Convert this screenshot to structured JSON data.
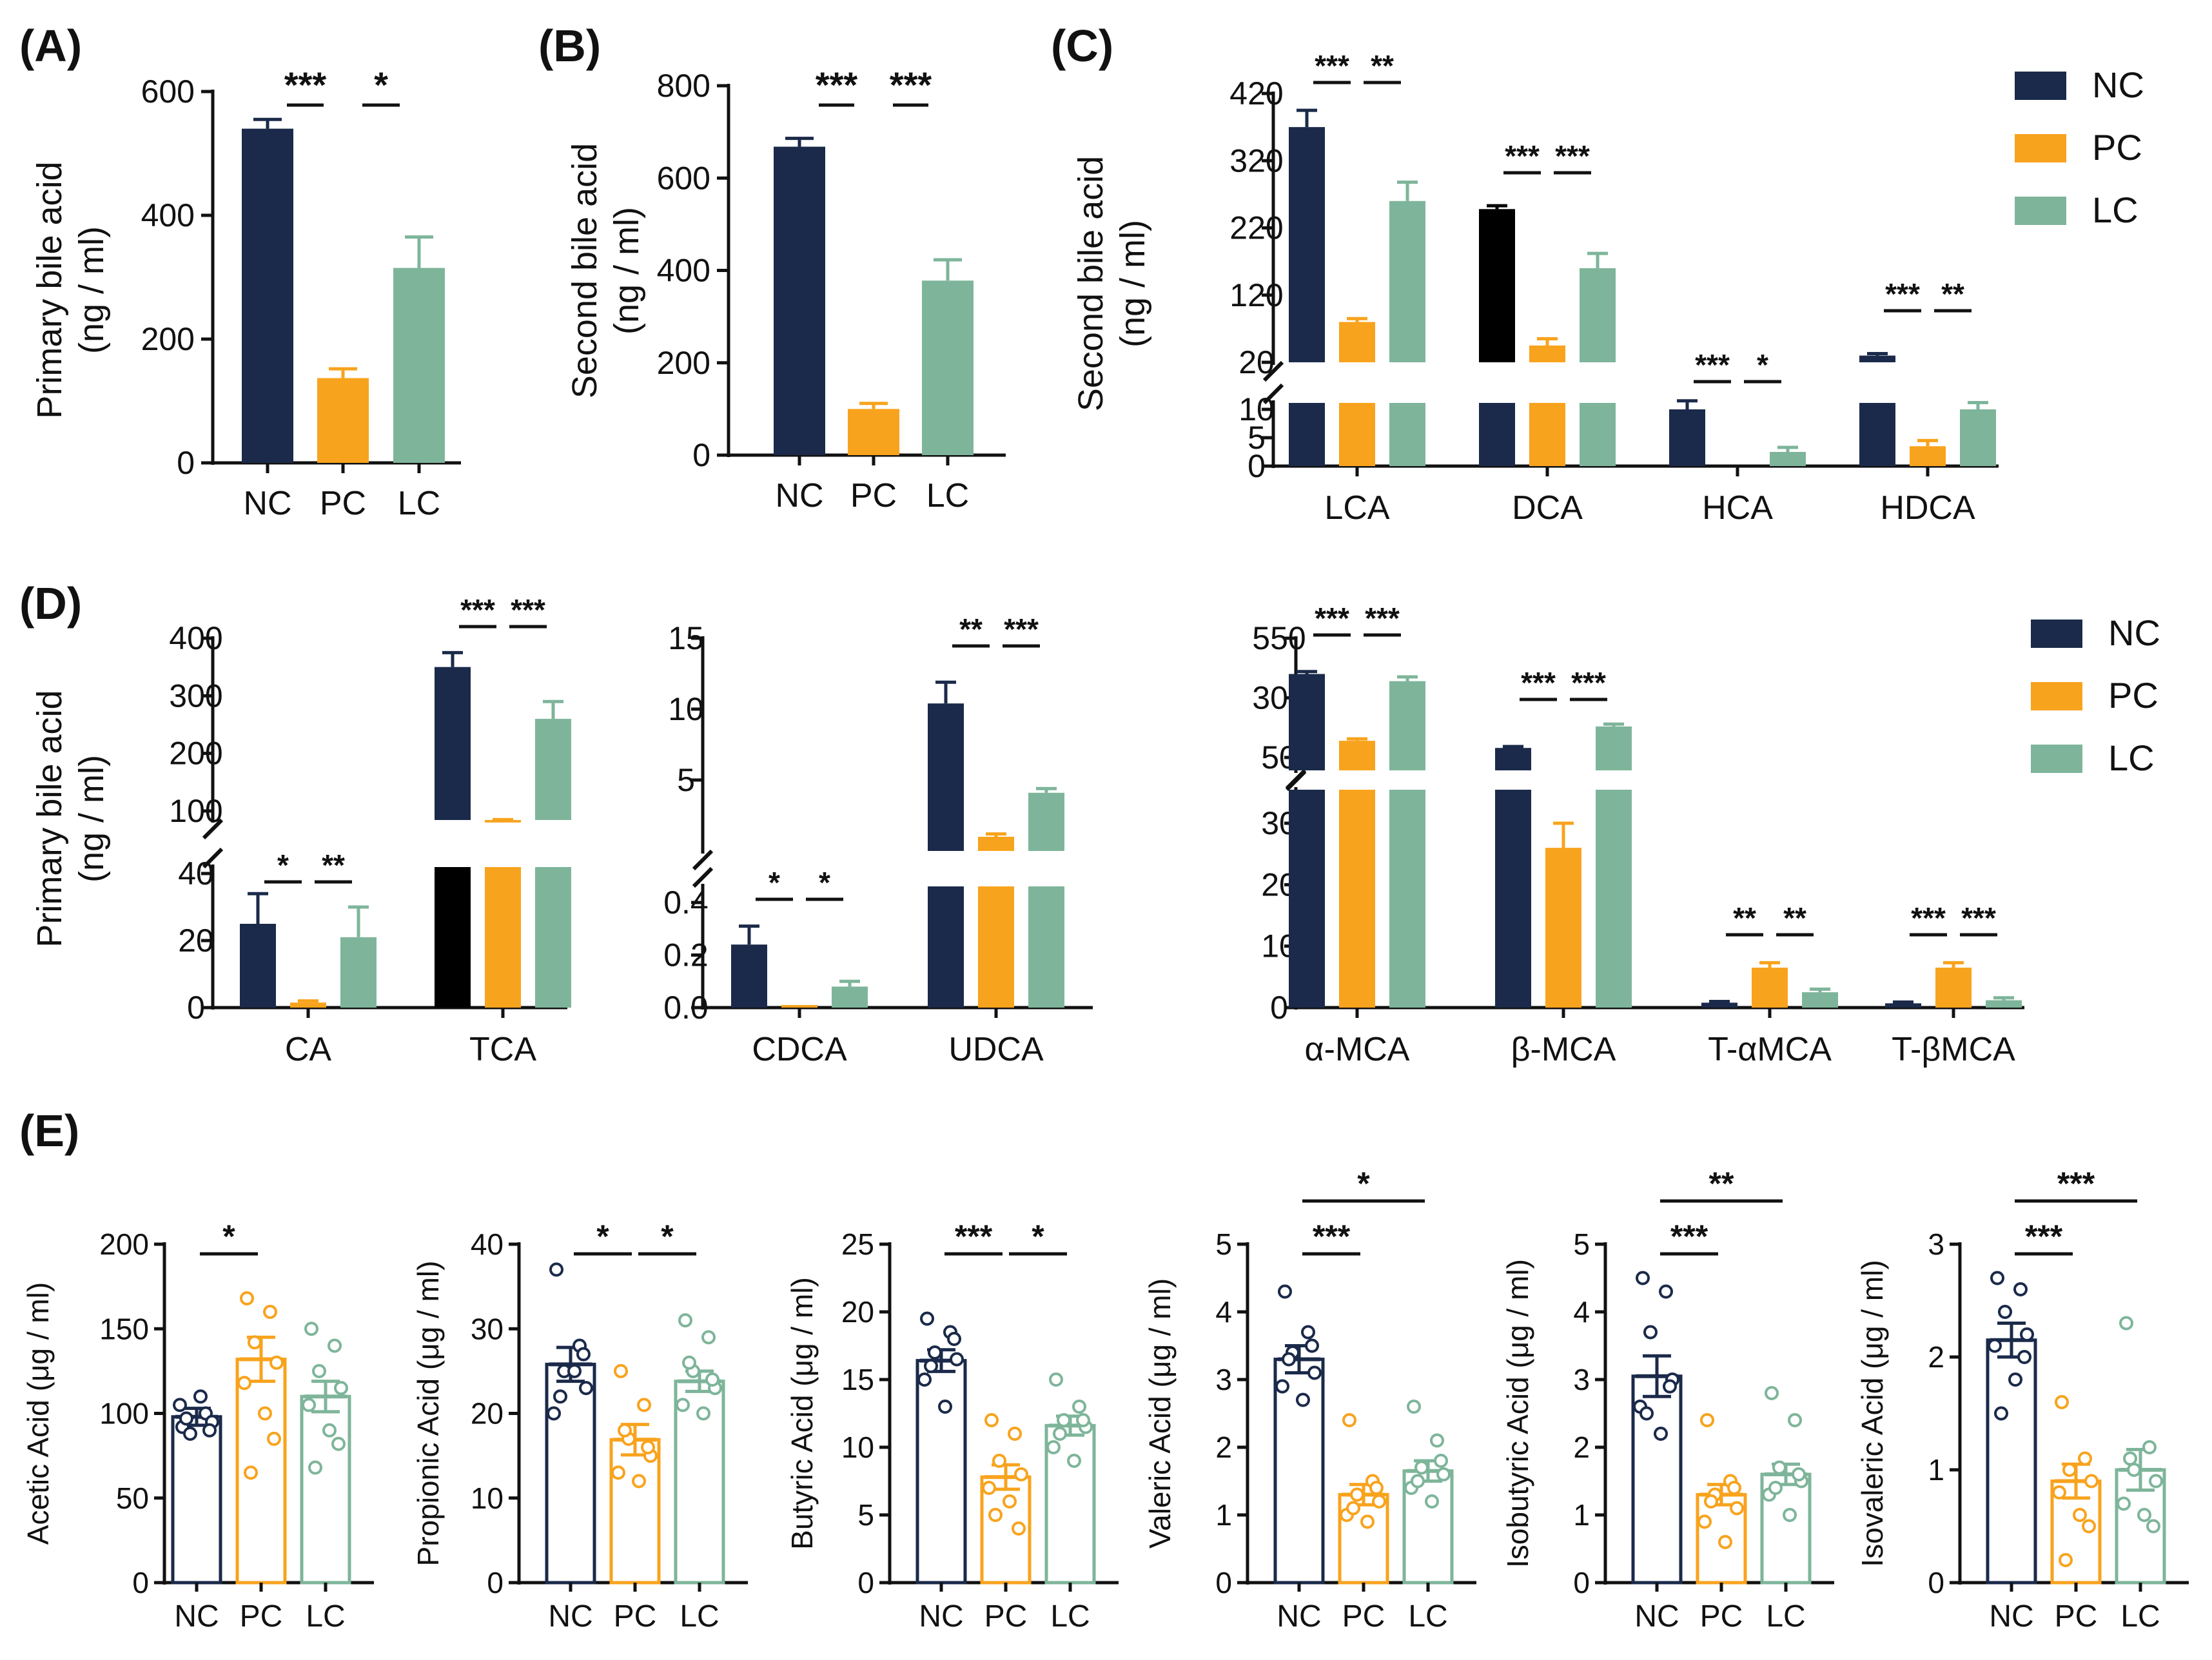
{
  "colors": {
    "NC": "#1b2a4a",
    "PC": "#f8a31d",
    "LC": "#7eb59a",
    "black": "#000000",
    "axis": "#111111"
  },
  "legend_top": [
    "NC",
    "PC",
    "LC"
  ],
  "legend_middle": [
    "NC",
    "PC",
    "LC"
  ],
  "chart_data": [
    {
      "id": "A",
      "panel": "(A)",
      "type": "bar",
      "ylabel": [
        "Primary bile acid",
        "(ng / ml)"
      ],
      "categories": [
        "NC",
        "PC",
        "LC"
      ],
      "values": [
        540,
        137,
        315
      ],
      "errors": [
        15,
        15,
        50
      ],
      "ylim": [
        0,
        600
      ],
      "ticks": [
        "0",
        "200",
        "400",
        "600"
      ],
      "tick_values": [
        0,
        200,
        400,
        600
      ],
      "sig": [
        {
          "pair": [
            0,
            1
          ],
          "label": "***"
        },
        {
          "pair": [
            1,
            2
          ],
          "label": "*"
        }
      ]
    },
    {
      "id": "B",
      "panel": "(B)",
      "type": "bar",
      "ylabel": [
        "Second bile acid",
        "(ng / ml)"
      ],
      "categories": [
        "NC",
        "PC",
        "LC"
      ],
      "values": [
        668,
        100,
        378
      ],
      "errors": [
        18,
        12,
        45
      ],
      "ylim": [
        0,
        800
      ],
      "ticks": [
        "0",
        "200",
        "400",
        "600",
        "800"
      ],
      "tick_values": [
        0,
        200,
        400,
        600,
        800
      ],
      "sig": [
        {
          "pair": [
            0,
            1
          ],
          "label": "***"
        },
        {
          "pair": [
            1,
            2
          ],
          "label": "***"
        }
      ]
    },
    {
      "id": "C",
      "panel": "(C)",
      "type": "bar",
      "ylabel": [
        "Second bile acid",
        "(ng / ml)"
      ],
      "series": [
        "NC",
        "PC",
        "LC"
      ],
      "groups": [
        "LCA",
        "DCA",
        "HCA",
        "HDCA"
      ],
      "values": [
        [
          370,
          80,
          260
        ],
        [
          248,
          45,
          160
        ],
        [
          10,
          0,
          2.5
        ],
        [
          30,
          3.5,
          10
        ]
      ],
      "errors": [
        [
          25,
          5,
          28
        ],
        [
          5,
          10,
          22
        ],
        [
          1.5,
          0,
          0.8
        ],
        [
          3,
          1,
          1.2
        ]
      ],
      "colorOverride": [
        [
          null,
          null,
          null
        ],
        [
          "black",
          null,
          null
        ],
        [
          null,
          null,
          null
        ],
        [
          null,
          null,
          null
        ]
      ],
      "ticks": [
        "420",
        "320",
        "220",
        "120",
        "20",
        "10",
        "5",
        "0"
      ],
      "sig": [
        {
          "g": 0,
          "a": "***",
          "b": "**"
        },
        {
          "g": 1,
          "a": "***",
          "b": "***"
        },
        {
          "g": 2,
          "a": "***",
          "b": "*"
        },
        {
          "g": 3,
          "a": "***",
          "b": "**"
        }
      ]
    },
    {
      "id": "D1",
      "panel": "(D)",
      "type": "bar",
      "ylabel": [
        "Primary bile acid",
        "(ng / ml)"
      ],
      "series": [
        "NC",
        "PC",
        "LC"
      ],
      "groups": [
        "CA",
        "TCA"
      ],
      "values": [
        [
          25,
          1.5,
          21
        ],
        [
          350,
          80,
          260
        ]
      ],
      "errors": [
        [
          9,
          0.5,
          9
        ],
        [
          25,
          5,
          30
        ]
      ],
      "colorOverride": [
        [
          null,
          null,
          null
        ],
        [
          null,
          null,
          null
        ]
      ],
      "ticks": [
        "400",
        "300",
        "200",
        "100",
        "40",
        "20",
        "0"
      ],
      "sig": [
        {
          "g": 0,
          "a": "*",
          "b": "**"
        },
        {
          "g": 1,
          "a": "***",
          "b": "***"
        }
      ]
    },
    {
      "id": "D2",
      "type": "bar",
      "series": [
        "NC",
        "PC",
        "LC"
      ],
      "groups": [
        "CDCA",
        "UDCA"
      ],
      "values": [
        [
          0.24,
          0.01,
          0.08
        ],
        [
          10.4,
          1,
          4.1
        ]
      ],
      "errors": [
        [
          0.07,
          0.004,
          0.02
        ],
        [
          1.5,
          0.2,
          0.3
        ]
      ],
      "ticks": [
        "15",
        "10",
        "5",
        "0.4",
        "0.2",
        "0.0"
      ],
      "sig": [
        {
          "g": 0,
          "a": "*",
          "b": "*"
        },
        {
          "g": 1,
          "a": "**",
          "b": "***"
        }
      ]
    },
    {
      "id": "D3",
      "type": "bar",
      "series": [
        "NC",
        "PC",
        "LC"
      ],
      "groups": [
        "α-MCA",
        "β-MCA",
        "T-αMCA",
        "T-βMCA"
      ],
      "values": [
        [
          400,
          120,
          370
        ],
        [
          90,
          26,
          180
        ],
        [
          0.8,
          6.5,
          2.5
        ],
        [
          0.7,
          6.5,
          1.2
        ]
      ],
      "errors": [
        [
          10,
          8,
          18
        ],
        [
          6,
          4,
          10
        ],
        [
          0.2,
          0.8,
          0.5
        ],
        [
          0.2,
          0.8,
          0.4
        ]
      ],
      "ticks": [
        "550",
        "300",
        "50",
        "30",
        "20",
        "10",
        "0"
      ],
      "sig": [
        {
          "g": 0,
          "a": "***",
          "b": "***"
        },
        {
          "g": 1,
          "a": "***",
          "b": "***"
        },
        {
          "g": 2,
          "a": "**",
          "b": "**"
        },
        {
          "g": 3,
          "a": "***",
          "b": "***"
        }
      ]
    },
    {
      "id": "E1",
      "panel": "(E)",
      "type": "bar",
      "ylabel": "Acetic Acid (μg / ml)",
      "categories": [
        "NC",
        "PC",
        "LC"
      ],
      "values": [
        98,
        132,
        110
      ],
      "errors": [
        5,
        13,
        9
      ],
      "ylim": [
        0,
        200
      ],
      "ticks": [
        "0",
        "50",
        "100",
        "150",
        "200"
      ],
      "tick_values": [
        0,
        50,
        100,
        150,
        200
      ],
      "points": [
        [
          92,
          100,
          88,
          95,
          105,
          110,
          90,
          97
        ],
        [
          168,
          160,
          142,
          130,
          118,
          100,
          85,
          65
        ],
        [
          150,
          140,
          125,
          115,
          105,
          90,
          82,
          68
        ]
      ],
      "sig": [
        {
          "pair": [
            0,
            1
          ],
          "label": "*"
        }
      ]
    },
    {
      "id": "E2",
      "type": "bar",
      "ylabel": "Propionic Acid (μg / ml)",
      "categories": [
        "NC",
        "PC",
        "LC"
      ],
      "values": [
        25.8,
        16.9,
        23.8
      ],
      "errors": [
        2,
        1.8,
        1.2
      ],
      "ylim": [
        0,
        40
      ],
      "ticks": [
        "0",
        "10",
        "20",
        "30",
        "40"
      ],
      "tick_values": [
        0,
        10,
        20,
        30,
        40
      ],
      "points": [
        [
          37,
          28,
          25,
          23,
          20,
          25,
          27,
          22
        ],
        [
          25,
          21,
          17,
          15,
          13,
          12,
          16,
          18
        ],
        [
          31,
          29,
          25,
          23,
          21,
          20,
          24,
          26
        ]
      ],
      "sig": [
        {
          "pair": [
            0,
            1
          ],
          "label": "*"
        },
        {
          "pair": [
            1,
            2
          ],
          "label": "*"
        }
      ]
    },
    {
      "id": "E3",
      "type": "bar",
      "ylabel": "Butyric Acid (μg / ml)",
      "categories": [
        "NC",
        "PC",
        "LC"
      ],
      "values": [
        16.4,
        7.8,
        11.6
      ],
      "errors": [
        0.8,
        0.9,
        0.7
      ],
      "ylim": [
        0,
        25
      ],
      "ticks": [
        "0",
        "5",
        "10",
        "15",
        "20",
        "25"
      ],
      "tick_values": [
        0,
        5,
        10,
        15,
        20,
        25
      ],
      "points": [
        [
          19.5,
          18.5,
          17,
          16.5,
          15,
          13,
          18,
          16
        ],
        [
          12,
          11,
          9,
          8,
          7,
          6,
          4,
          5
        ],
        [
          15,
          13,
          12,
          11.5,
          10,
          9,
          12,
          11
        ]
      ],
      "sig": [
        {
          "pair": [
            0,
            1
          ],
          "label": "***"
        },
        {
          "pair": [
            1,
            2
          ],
          "label": "*"
        }
      ]
    },
    {
      "id": "E4",
      "type": "bar",
      "ylabel": "Valeric Acid (μg / ml)",
      "categories": [
        "NC",
        "PC",
        "LC"
      ],
      "values": [
        3.3,
        1.3,
        1.65
      ],
      "errors": [
        0.2,
        0.15,
        0.15
      ],
      "ylim": [
        0,
        5
      ],
      "ticks": [
        "0",
        "1",
        "2",
        "3",
        "4",
        "5"
      ],
      "tick_values": [
        0,
        1,
        2,
        3,
        4,
        5
      ],
      "points": [
        [
          4.3,
          3.7,
          3.4,
          3.1,
          2.9,
          2.7,
          3.5,
          3.3
        ],
        [
          2.4,
          1.5,
          1.3,
          1.2,
          1.0,
          0.9,
          1.4,
          1.1
        ],
        [
          2.6,
          2.1,
          1.7,
          1.6,
          1.4,
          1.2,
          1.8,
          1.5
        ]
      ],
      "sig": [
        {
          "pair": [
            0,
            1
          ],
          "label": "***"
        },
        {
          "pair": [
            0,
            2
          ],
          "label": "*"
        }
      ]
    },
    {
      "id": "E5",
      "type": "bar",
      "ylabel": "Isobutyric Acid (μg / ml)",
      "categories": [
        "NC",
        "PC",
        "LC"
      ],
      "values": [
        3.05,
        1.3,
        1.6
      ],
      "errors": [
        0.3,
        0.15,
        0.15
      ],
      "ylim": [
        0,
        5
      ],
      "ticks": [
        "0",
        "1",
        "2",
        "3",
        "4",
        "5"
      ],
      "tick_values": [
        0,
        1,
        2,
        3,
        4,
        5
      ],
      "points": [
        [
          4.5,
          4.3,
          3.7,
          3.0,
          2.6,
          2.2,
          2.9,
          2.5
        ],
        [
          2.4,
          1.5,
          1.3,
          1.1,
          0.9,
          0.6,
          1.4,
          1.2
        ],
        [
          2.8,
          2.4,
          1.7,
          1.5,
          1.3,
          1.0,
          1.6,
          1.4
        ]
      ],
      "sig": [
        {
          "pair": [
            0,
            1
          ],
          "label": "***"
        },
        {
          "pair": [
            0,
            2
          ],
          "label": "**"
        }
      ]
    },
    {
      "id": "E6",
      "type": "bar",
      "ylabel": "Isovaleric Acid (μg / ml)",
      "categories": [
        "NC",
        "PC",
        "LC"
      ],
      "values": [
        2.15,
        0.9,
        1.0
      ],
      "errors": [
        0.15,
        0.15,
        0.18
      ],
      "ylim": [
        0,
        3
      ],
      "ticks": [
        "0",
        "1",
        "2",
        "3"
      ],
      "tick_values": [
        0,
        1,
        2,
        3
      ],
      "points": [
        [
          2.7,
          2.6,
          2.4,
          2.2,
          2.1,
          1.8,
          2.0,
          1.5
        ],
        [
          1.6,
          1.1,
          1.0,
          0.9,
          0.8,
          0.6,
          0.5,
          0.2
        ],
        [
          2.3,
          1.2,
          1.0,
          0.9,
          0.7,
          0.6,
          0.5,
          1.1
        ]
      ],
      "sig": [
        {
          "pair": [
            0,
            1
          ],
          "label": "***"
        },
        {
          "pair": [
            0,
            2
          ],
          "label": "***"
        }
      ]
    }
  ]
}
